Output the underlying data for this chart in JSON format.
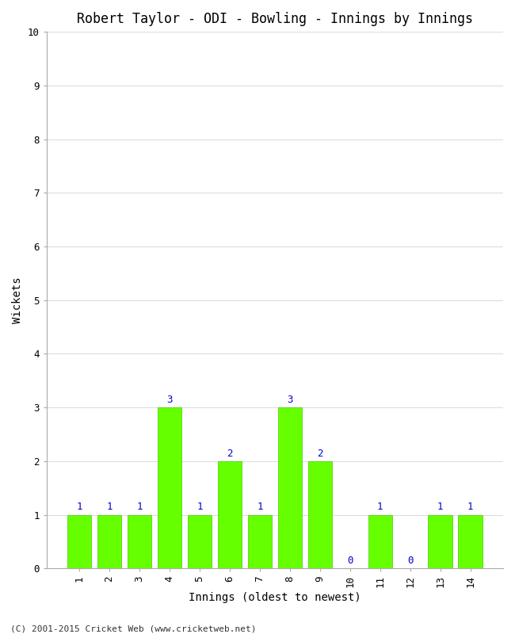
{
  "title": "Robert Taylor - ODI - Bowling - Innings by Innings",
  "xlabel": "Innings (oldest to newest)",
  "ylabel": "Wickets",
  "categories": [
    "1",
    "2",
    "3",
    "4",
    "5",
    "6",
    "7",
    "8",
    "9",
    "10",
    "11",
    "12",
    "13",
    "14"
  ],
  "values": [
    1,
    1,
    1,
    3,
    1,
    2,
    1,
    3,
    2,
    0,
    1,
    0,
    1,
    1
  ],
  "bar_color": "#66ff00",
  "bar_edge_color": "#44cc00",
  "label_color": "#0000cc",
  "ylim": [
    0,
    10
  ],
  "yticks": [
    0,
    1,
    2,
    3,
    4,
    5,
    6,
    7,
    8,
    9,
    10
  ],
  "background_color": "#ffffff",
  "grid_color": "#dddddd",
  "title_fontsize": 12,
  "axis_fontsize": 10,
  "tick_fontsize": 9,
  "label_fontsize": 9,
  "footer": "(C) 2001-2015 Cricket Web (www.cricketweb.net)",
  "footer_fontsize": 8
}
